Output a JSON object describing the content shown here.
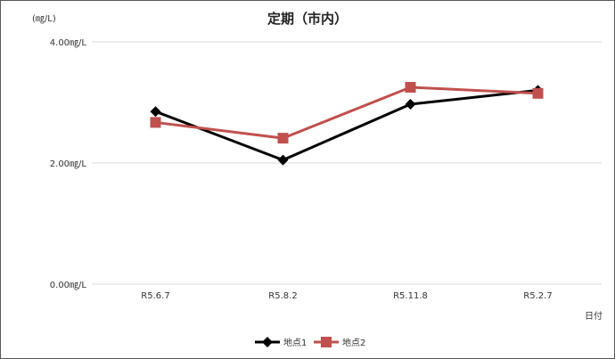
{
  "chart_data": {
    "type": "line",
    "title": "定期（市内）",
    "y_unit_label": "(㎎/L)",
    "xlabel": "日付",
    "categories": [
      "R5.6.7",
      "R5.8.2",
      "R5.11.8",
      "R5.2.7"
    ],
    "ylim": [
      0,
      4
    ],
    "yticks": [
      {
        "value": 0,
        "label": "0.00㎎/L"
      },
      {
        "value": 2,
        "label": "2.00㎎/L"
      },
      {
        "value": 4,
        "label": "4.00㎎/L"
      }
    ],
    "grid": true,
    "legend_position": "bottom",
    "series": [
      {
        "name": "地点1",
        "values": [
          2.85,
          2.05,
          2.97,
          3.2
        ],
        "color": "#000000",
        "marker": "diamond"
      },
      {
        "name": "地点2",
        "values": [
          2.67,
          2.41,
          3.25,
          3.15
        ],
        "color": "#C0504D",
        "marker": "square"
      }
    ]
  }
}
